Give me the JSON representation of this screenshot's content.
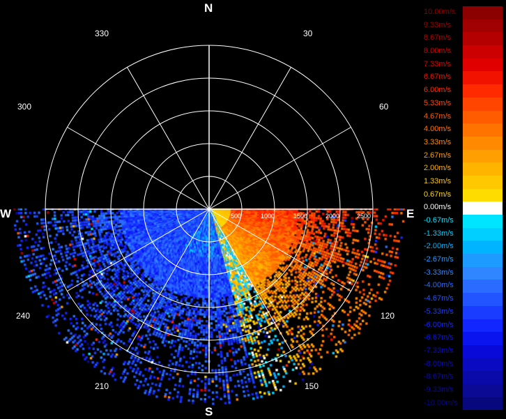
{
  "compass": {
    "n": "N",
    "e": "E",
    "s": "S",
    "w": "W"
  },
  "azimuth_labels": {
    "a30": "30",
    "a60": "60",
    "a120": "120",
    "a150": "150",
    "a210": "210",
    "a240": "240",
    "a300": "300",
    "a330": "330"
  },
  "range_labels": {
    "r500": "500",
    "r1000": "1000",
    "r1500": "1500",
    "r2000": "2000",
    "r2500": "2500"
  },
  "legend": [
    {
      "label": "10.00m/s",
      "color": "#8b0000"
    },
    {
      "label": "9.33m/s",
      "color": "#a00000"
    },
    {
      "label": "8.67m/s",
      "color": "#b50000"
    },
    {
      "label": "8.00m/s",
      "color": "#cc0000"
    },
    {
      "label": "7.33m/s",
      "color": "#e00000"
    },
    {
      "label": "6.67m/s",
      "color": "#f21200"
    },
    {
      "label": "6.00m/s",
      "color": "#ff2a00"
    },
    {
      "label": "5.33m/s",
      "color": "#ff4500"
    },
    {
      "label": "4.67m/s",
      "color": "#ff5c00"
    },
    {
      "label": "4.00m/s",
      "color": "#ff7300"
    },
    {
      "label": "3.33m/s",
      "color": "#ff8a00"
    },
    {
      "label": "2.67m/s",
      "color": "#ffa000"
    },
    {
      "label": "2.00m/s",
      "color": "#ffb400"
    },
    {
      "label": "1.33m/s",
      "color": "#ffc800"
    },
    {
      "label": "0.67m/s",
      "color": "#ffdc00"
    },
    {
      "label": "0.00m/s",
      "color": "#ffffff"
    },
    {
      "label": "-0.67m/s",
      "color": "#00e5ff"
    },
    {
      "label": "-1.33m/s",
      "color": "#00cfff"
    },
    {
      "label": "-2.00m/s",
      "color": "#00b4ff"
    },
    {
      "label": "-2.67m/s",
      "color": "#1e9bff"
    },
    {
      "label": "-3.33m/s",
      "color": "#2f86ff"
    },
    {
      "label": "-4.00m/s",
      "color": "#2a6cff"
    },
    {
      "label": "-4.67m/s",
      "color": "#2255ff"
    },
    {
      "label": "-5.33m/s",
      "color": "#1a3cff"
    },
    {
      "label": "-6.00m/s",
      "color": "#1226ff"
    },
    {
      "label": "-6.67m/s",
      "color": "#0a14ee"
    },
    {
      "label": "-7.33m/s",
      "color": "#0a0ad8"
    },
    {
      "label": "-8.00m/s",
      "color": "#0a0ac0"
    },
    {
      "label": "-8.67m/s",
      "color": "#0a0aa8"
    },
    {
      "label": "-9.33m/s",
      "color": "#0a0a94"
    },
    {
      "label": "-10.00m/s",
      "color": "#08087e"
    }
  ]
}
